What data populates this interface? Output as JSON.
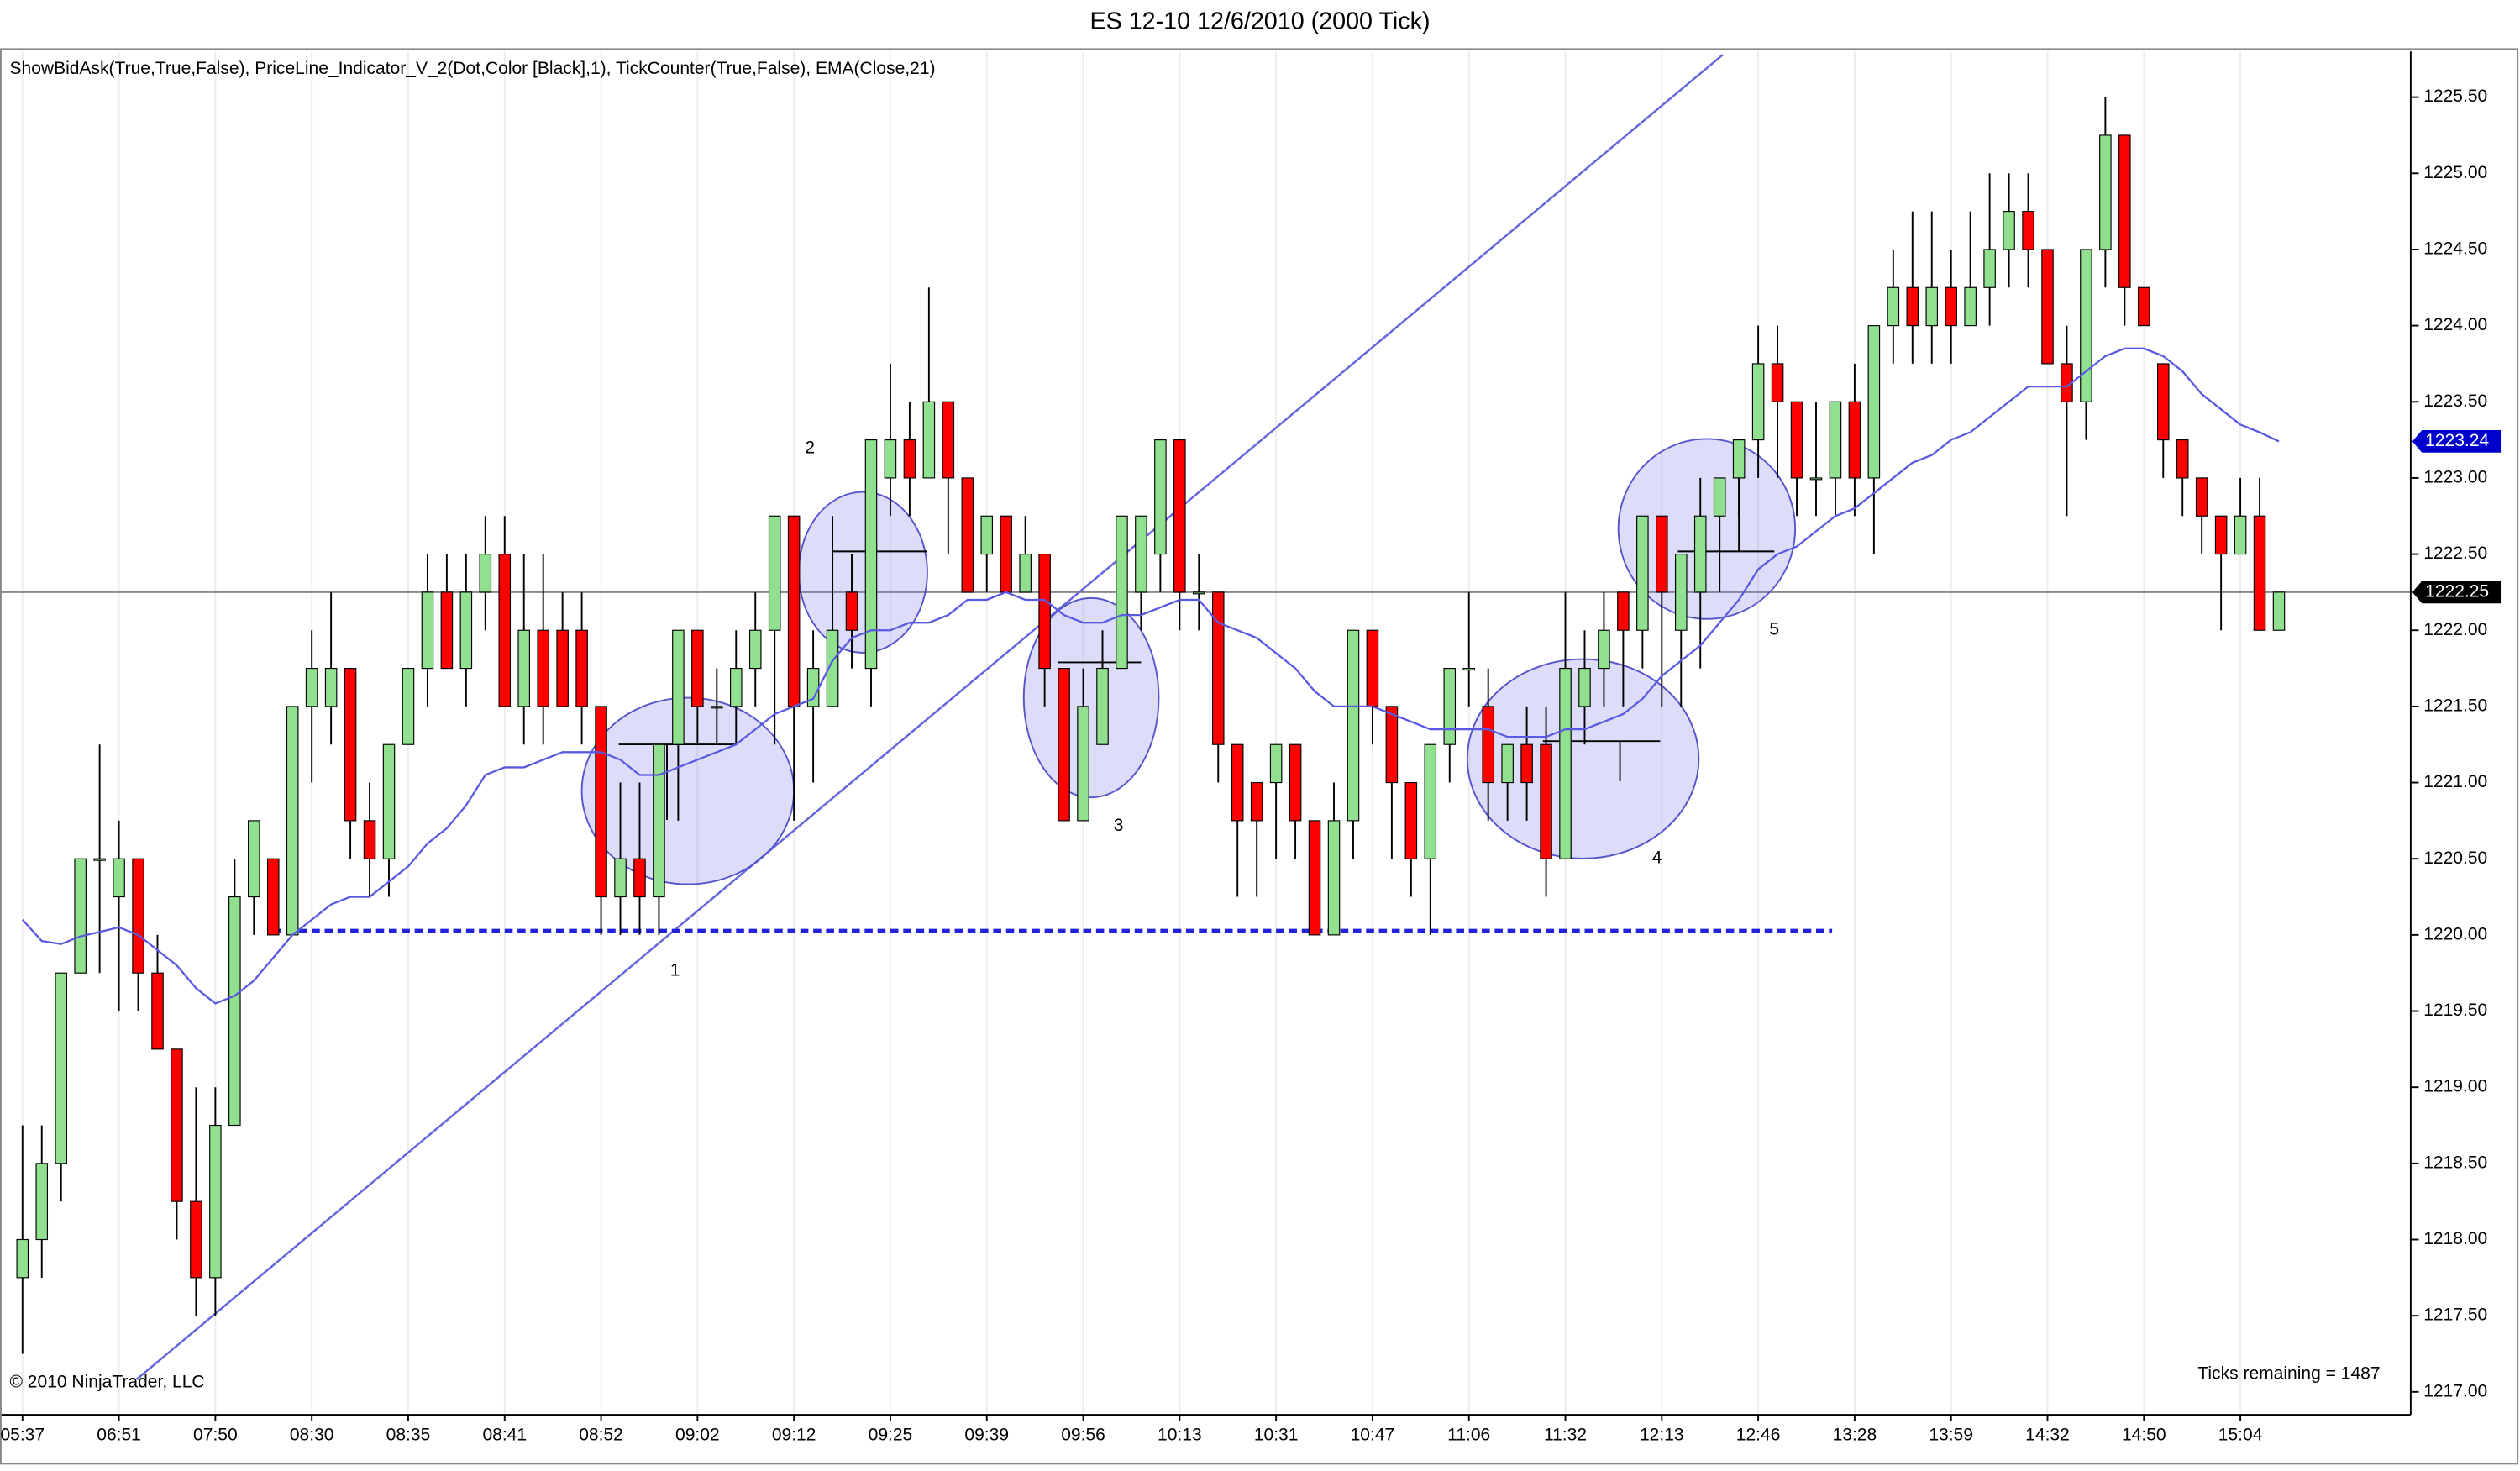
{
  "chart_data": {
    "type": "candlestick",
    "title": "ES 12-10  12/6/2010 (2000 Tick)",
    "subtitle": "ShowBidAsk(True,True,False), PriceLine_Indicator_V_2(Dot,Color [Black],1), TickCounter(True,False), EMA(Close,21)",
    "copyright": "© 2010 NinjaTrader, LLC",
    "ticks_remaining": "Ticks remaining = 1487",
    "annotations": [
      "1",
      "2",
      "3",
      "4",
      "5"
    ],
    "categories": [
      "05:37",
      null,
      null,
      null,
      null,
      "06:51",
      null,
      null,
      null,
      null,
      "07:50",
      null,
      null,
      null,
      null,
      "08:30",
      null,
      null,
      null,
      null,
      "08:35",
      null,
      null,
      null,
      null,
      "08:41",
      null,
      null,
      null,
      null,
      "08:52",
      null,
      null,
      null,
      null,
      "09:02",
      null,
      null,
      null,
      null,
      "09:12",
      null,
      null,
      null,
      null,
      "09:25",
      null,
      null,
      null,
      null,
      "09:39",
      null,
      null,
      null,
      null,
      "09:56",
      null,
      null,
      null,
      null,
      "10:13",
      null,
      null,
      null,
      null,
      "10:31",
      null,
      null,
      null,
      null,
      "10:47",
      null,
      null,
      null,
      null,
      "11:06",
      null,
      null,
      null,
      null,
      "11:32",
      null,
      null,
      null,
      null,
      "12:13",
      null,
      null,
      null,
      null,
      "12:46",
      null,
      null,
      null,
      null,
      "13:28",
      null,
      null,
      null,
      null,
      "13:59",
      null,
      null,
      null,
      null,
      "14:32",
      null,
      null,
      null,
      null,
      "14:50",
      null,
      null,
      null,
      null,
      "15:04",
      null,
      null
    ],
    "open": [
      1217.75,
      1218.0,
      1218.5,
      1219.75,
      1220.5,
      1220.25,
      1220.5,
      1219.75,
      1219.25,
      1218.25,
      1217.75,
      1218.75,
      1220.25,
      1220.5,
      1220.0,
      1221.5,
      1221.5,
      1221.75,
      1220.75,
      1220.5,
      1221.25,
      1221.75,
      1222.25,
      1221.75,
      1222.25,
      1222.5,
      1221.5,
      1222.0,
      1222.0,
      1222.0,
      1221.5,
      1220.25,
      1220.5,
      1220.25,
      1221.25,
      1222.0,
      1221.5,
      1221.5,
      1221.75,
      1222.0,
      1222.75,
      1221.5,
      1221.5,
      1222.25,
      1221.75,
      1223.0,
      1223.25,
      1223.0,
      1223.5,
      1223.0,
      1222.5,
      1222.75,
      1222.25,
      1222.5,
      1221.75,
      1220.75,
      1221.25,
      1221.75,
      1222.25,
      1222.5,
      1223.25,
      1222.25,
      1222.25,
      1221.25,
      1221.0,
      1221.0,
      1221.25,
      1220.75,
      1220.0,
      1220.75,
      1222.0,
      1221.5,
      1221.0,
      1220.5,
      1221.25,
      1221.75,
      1221.5,
      1221.0,
      1221.25,
      1221.25,
      1220.5,
      1221.5,
      1221.75,
      1222.25,
      1222.0,
      1222.75,
      1222.0,
      1222.25,
      1222.75,
      1223.0,
      1223.25,
      1223.75,
      1223.5,
      1223.0,
      1223.0,
      1223.5,
      1223.0,
      1224.0,
      1224.25,
      1224.0,
      1224.25,
      1224.0,
      1224.25,
      1224.5,
      1224.75,
      1224.5,
      1223.75,
      1223.5,
      1224.5,
      1225.25,
      1224.25,
      1223.75,
      1223.25,
      1223.0,
      1222.75,
      1222.5,
      1222.75,
      1222.0
    ],
    "high": [
      1218.75,
      1218.75,
      1219.75,
      1220.5,
      1221.25,
      1220.75,
      1220.5,
      1220.0,
      1219.25,
      1219.0,
      1219.0,
      1220.5,
      1220.75,
      1220.5,
      1221.5,
      1222.0,
      1222.25,
      1221.75,
      1221.0,
      1221.25,
      1221.75,
      1222.5,
      1222.5,
      1222.5,
      1222.75,
      1222.75,
      1222.5,
      1222.5,
      1222.25,
      1222.25,
      1221.5,
      1221.0,
      1221.0,
      1221.25,
      1222.0,
      1222.0,
      1221.75,
      1222.0,
      1222.25,
      1222.75,
      1222.75,
      1222.0,
      1222.75,
      1222.5,
      1223.25,
      1223.75,
      1223.5,
      1224.25,
      1223.5,
      1223.0,
      1222.75,
      1222.75,
      1222.75,
      1222.5,
      1221.75,
      1221.75,
      1222.0,
      1222.75,
      1222.75,
      1223.25,
      1223.25,
      1222.5,
      1222.25,
      1221.25,
      1221.0,
      1221.25,
      1221.25,
      1220.75,
      1221.0,
      1222.0,
      1222.0,
      1221.5,
      1221.0,
      1221.25,
      1221.75,
      1222.25,
      1221.75,
      1221.25,
      1221.5,
      1221.5,
      1222.25,
      1222.0,
      1222.25,
      1222.25,
      1222.75,
      1222.75,
      1222.5,
      1223.0,
      1223.0,
      1223.25,
      1224.0,
      1224.0,
      1223.5,
      1223.5,
      1223.5,
      1223.75,
      1224.0,
      1224.5,
      1224.75,
      1224.75,
      1224.5,
      1224.75,
      1225.0,
      1225.0,
      1225.0,
      1224.5,
      1224.0,
      1224.5,
      1225.5,
      1225.25,
      1224.25,
      1223.75,
      1223.25,
      1223.0,
      1222.75,
      1223.0,
      1223.0,
      1222.25
    ],
    "low": [
      1217.25,
      1217.75,
      1218.25,
      1219.75,
      1219.75,
      1219.5,
      1219.5,
      1219.25,
      1218.0,
      1217.5,
      1217.5,
      1218.75,
      1220.0,
      1220.0,
      1220.0,
      1221.0,
      1221.25,
      1220.5,
      1220.25,
      1220.25,
      1221.25,
      1221.5,
      1221.75,
      1221.5,
      1222.0,
      1221.5,
      1221.25,
      1221.25,
      1221.5,
      1221.25,
      1220.0,
      1220.0,
      1220.0,
      1220.0,
      1220.75,
      1221.25,
      1221.25,
      1221.25,
      1221.5,
      1221.25,
      1220.75,
      1221.0,
      1221.5,
      1221.75,
      1221.5,
      1222.75,
      1222.75,
      1223.0,
      1222.5,
      1222.25,
      1222.25,
      1222.25,
      1222.25,
      1221.5,
      1220.75,
      1220.75,
      1221.25,
      1221.75,
      1222.0,
      1222.25,
      1222.0,
      1222.0,
      1221.0,
      1220.25,
      1220.25,
      1220.5,
      1220.5,
      1220.0,
      1220.0,
      1220.5,
      1221.25,
      1220.5,
      1220.25,
      1220.0,
      1221.0,
      1221.5,
      1220.75,
      1220.75,
      1220.75,
      1220.25,
      1220.5,
      1221.25,
      1221.5,
      1221.5,
      1221.75,
      1221.5,
      1221.5,
      1221.75,
      1222.25,
      1222.75,
      1223.0,
      1223.0,
      1222.75,
      1222.75,
      1222.75,
      1222.75,
      1222.5,
      1223.75,
      1223.75,
      1223.75,
      1223.75,
      1224.0,
      1224.0,
      1224.25,
      1224.25,
      1223.75,
      1222.75,
      1223.25,
      1224.25,
      1224.0,
      1224.0,
      1223.0,
      1222.75,
      1222.5,
      1222.0,
      1222.5,
      1222.0,
      1222.0
    ],
    "close": [
      1218.0,
      1218.5,
      1219.75,
      1220.5,
      1220.5,
      1220.5,
      1219.75,
      1219.25,
      1218.25,
      1217.75,
      1218.75,
      1220.25,
      1220.75,
      1220.0,
      1221.5,
      1221.75,
      1221.75,
      1220.75,
      1220.5,
      1221.25,
      1221.75,
      1222.25,
      1221.75,
      1222.25,
      1222.5,
      1221.5,
      1222.0,
      1221.5,
      1221.5,
      1221.5,
      1220.25,
      1220.5,
      1220.25,
      1221.25,
      1222.0,
      1221.5,
      1221.5,
      1221.75,
      1222.0,
      1222.75,
      1221.5,
      1221.75,
      1222.0,
      1222.0,
      1223.25,
      1223.25,
      1223.0,
      1223.5,
      1223.0,
      1222.25,
      1222.75,
      1222.25,
      1222.5,
      1221.75,
      1220.75,
      1221.5,
      1221.75,
      1222.75,
      1222.75,
      1223.25,
      1222.25,
      1222.25,
      1221.25,
      1220.75,
      1220.75,
      1221.25,
      1220.75,
      1220.0,
      1220.75,
      1222.0,
      1221.5,
      1221.0,
      1220.5,
      1221.25,
      1221.75,
      1221.75,
      1221.0,
      1221.25,
      1221.0,
      1220.5,
      1221.75,
      1221.75,
      1222.0,
      1222.0,
      1222.75,
      1222.25,
      1222.5,
      1222.75,
      1223.0,
      1223.25,
      1223.75,
      1223.5,
      1223.0,
      1223.0,
      1223.5,
      1223.0,
      1224.0,
      1224.25,
      1224.0,
      1224.25,
      1224.0,
      1224.25,
      1224.5,
      1224.75,
      1224.5,
      1223.75,
      1223.5,
      1224.5,
      1225.25,
      1224.25,
      1224.0,
      1223.25,
      1223.0,
      1222.75,
      1222.5,
      1222.75,
      1222.0,
      1222.25
    ],
    "up_color": "#90e090",
    "down_color": "#ff0000",
    "ema": {
      "color": "#5a5ae0",
      "values": [
        1220.1,
        1219.96,
        1219.94,
        1219.99,
        1220.02,
        1220.05,
        1220.0,
        1219.9,
        1219.8,
        1219.65,
        1219.55,
        1219.6,
        1219.7,
        1219.85,
        1220.0,
        1220.1,
        1220.2,
        1220.25,
        1220.25,
        1220.35,
        1220.45,
        1220.6,
        1220.7,
        1220.85,
        1221.05,
        1221.1,
        1221.1,
        1221.15,
        1221.2,
        1221.2,
        1221.2,
        1221.15,
        1221.05,
        1221.05,
        1221.1,
        1221.15,
        1221.2,
        1221.25,
        1221.35,
        1221.45,
        1221.5,
        1221.55,
        1221.8,
        1221.95,
        1222.0,
        1222.0,
        1222.05,
        1222.05,
        1222.1,
        1222.2,
        1222.2,
        1222.25,
        1222.2,
        1222.2,
        1222.1,
        1222.05,
        1222.05,
        1222.1,
        1222.1,
        1222.15,
        1222.2,
        1222.2,
        1222.05,
        1222.0,
        1221.95,
        1221.85,
        1221.75,
        1221.6,
        1221.5,
        1221.5,
        1221.5,
        1221.45,
        1221.4,
        1221.35,
        1221.35,
        1221.35,
        1221.35,
        1221.3,
        1221.3,
        1221.3,
        1221.35,
        1221.35,
        1221.4,
        1221.45,
        1221.55,
        1221.7,
        1221.8,
        1221.9,
        1222.05,
        1222.2,
        1222.4,
        1222.5,
        1222.55,
        1222.65,
        1222.75,
        1222.8,
        1222.9,
        1223.0,
        1223.1,
        1223.15,
        1223.25,
        1223.3,
        1223.4,
        1223.5,
        1223.6,
        1223.6,
        1223.6,
        1223.7,
        1223.8,
        1223.85,
        1223.85,
        1223.8,
        1223.7,
        1223.55,
        1223.45,
        1223.35,
        1223.3,
        1223.24
      ]
    },
    "price_tags": [
      {
        "value": 1223.24,
        "label": "1223.24",
        "color": "#0000cc"
      },
      {
        "value": 1222.25,
        "label": "1222.25",
        "color": "#000000"
      }
    ],
    "ylim": [
      1216.85,
      1225.8
    ],
    "yticks": [
      {
        "value": 1217.0,
        "label": "1217.00"
      },
      {
        "value": 1217.5,
        "label": "1217.50"
      },
      {
        "value": 1218.0,
        "label": "1218.00"
      },
      {
        "value": 1218.5,
        "label": "1218.50"
      },
      {
        "value": 1219.0,
        "label": "1219.00"
      },
      {
        "value": 1219.5,
        "label": "1219.50"
      },
      {
        "value": 1220.0,
        "label": "1220.00"
      },
      {
        "value": 1220.5,
        "label": "1220.50"
      },
      {
        "value": 1221.0,
        "label": "1221.00"
      },
      {
        "value": 1221.5,
        "label": "1221.50"
      },
      {
        "value": 1222.0,
        "label": "1222.00"
      },
      {
        "value": 1222.5,
        "label": "1222.50"
      },
      {
        "value": 1223.0,
        "label": "1223.00"
      },
      {
        "value": 1223.5,
        "label": "1223.50"
      },
      {
        "value": 1224.0,
        "label": "1224.00"
      },
      {
        "value": 1224.5,
        "label": "1224.50"
      },
      {
        "value": 1225.0,
        "label": "1225.00"
      },
      {
        "value": 1225.5,
        "label": "1225.50"
      }
    ],
    "grid": true
  }
}
